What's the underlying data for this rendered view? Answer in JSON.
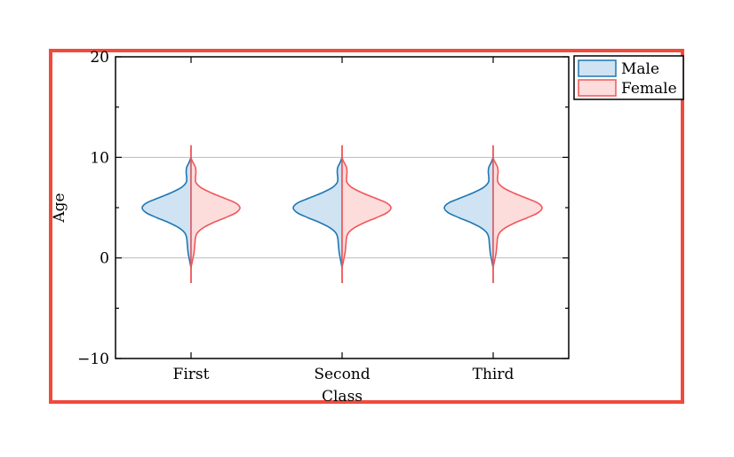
{
  "chart_data": {
    "type": "violin",
    "xlabel": "Class",
    "ylabel": "Age",
    "categories": [
      "First",
      "Second",
      "Third"
    ],
    "ylim": [
      -10,
      20
    ],
    "yticks": [
      -10,
      0,
      10,
      20
    ],
    "ytick_labels": [
      "−10",
      "0",
      "10",
      "20"
    ],
    "grid_y": [
      0,
      10
    ],
    "legend_position": "outside top-right",
    "series": [
      {
        "name": "Male",
        "side": "left",
        "color": "#1f77b4",
        "fill": "#cfe3f2",
        "range": [
          -1,
          10
        ],
        "profile": [
          [
            -1.0,
            0.0
          ],
          [
            -0.5,
            0.02
          ],
          [
            0.0,
            0.04
          ],
          [
            0.5,
            0.06
          ],
          [
            1.0,
            0.07
          ],
          [
            1.5,
            0.08
          ],
          [
            2.0,
            0.09
          ],
          [
            2.5,
            0.13
          ],
          [
            3.0,
            0.25
          ],
          [
            3.5,
            0.45
          ],
          [
            4.0,
            0.7
          ],
          [
            4.5,
            0.92
          ],
          [
            5.0,
            1.0
          ],
          [
            5.5,
            0.9
          ],
          [
            6.0,
            0.65
          ],
          [
            6.5,
            0.4
          ],
          [
            7.0,
            0.2
          ],
          [
            7.5,
            0.1
          ],
          [
            8.0,
            0.09
          ],
          [
            8.5,
            0.1
          ],
          [
            9.0,
            0.09
          ],
          [
            9.5,
            0.04
          ],
          [
            10.0,
            0.0
          ]
        ]
      },
      {
        "name": "Female",
        "side": "right",
        "color": "#f0575a",
        "fill": "#fddcdc",
        "range": [
          -2.5,
          11.2
        ],
        "profile": [
          [
            -2.5,
            0.0
          ],
          [
            -1.0,
            0.0
          ],
          [
            -0.5,
            0.02
          ],
          [
            0.0,
            0.04
          ],
          [
            0.5,
            0.06
          ],
          [
            1.0,
            0.07
          ],
          [
            1.5,
            0.08
          ],
          [
            2.0,
            0.09
          ],
          [
            2.5,
            0.13
          ],
          [
            3.0,
            0.25
          ],
          [
            3.5,
            0.45
          ],
          [
            4.0,
            0.7
          ],
          [
            4.5,
            0.92
          ],
          [
            5.0,
            1.0
          ],
          [
            5.5,
            0.9
          ],
          [
            6.0,
            0.65
          ],
          [
            6.5,
            0.4
          ],
          [
            7.0,
            0.2
          ],
          [
            7.5,
            0.1
          ],
          [
            8.0,
            0.09
          ],
          [
            8.5,
            0.1
          ],
          [
            9.0,
            0.09
          ],
          [
            9.5,
            0.04
          ],
          [
            10.0,
            0.0
          ],
          [
            11.2,
            0.0
          ]
        ]
      }
    ],
    "colors": {
      "highlight_box": "#f04a3c",
      "grid": "#bbbbbb",
      "axis": "#000000"
    }
  }
}
